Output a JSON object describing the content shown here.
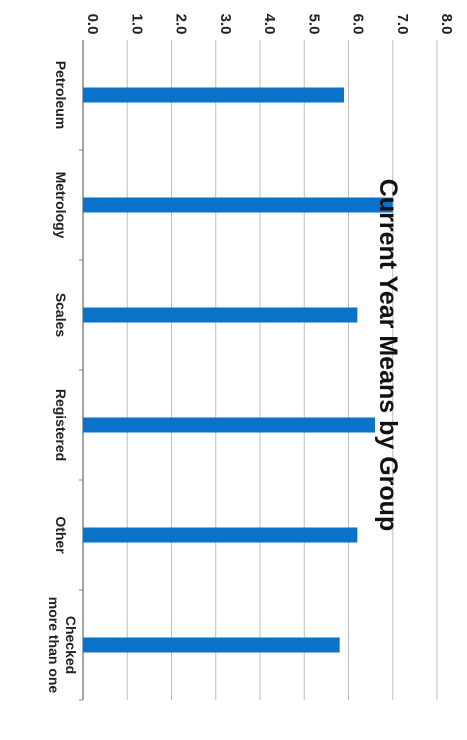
{
  "chart_data": {
    "type": "bar",
    "orientation": "rotated-90-clockwise",
    "title": "Current Year Means by Group",
    "categories": [
      "Petroleum",
      "Metrology",
      "Scales",
      "Registered",
      "Other",
      "Checked more than one"
    ],
    "values": [
      5.9,
      7.0,
      6.2,
      6.6,
      6.2,
      5.8
    ],
    "ylim": [
      0,
      8
    ],
    "yticks": [
      "0.0",
      "1.0",
      "2.0",
      "3.0",
      "4.0",
      "5.0",
      "6.0",
      "7.0",
      "8.0"
    ],
    "grid": true,
    "bar_color": "#0a72c8",
    "grid_color": "#bdbdbd"
  }
}
